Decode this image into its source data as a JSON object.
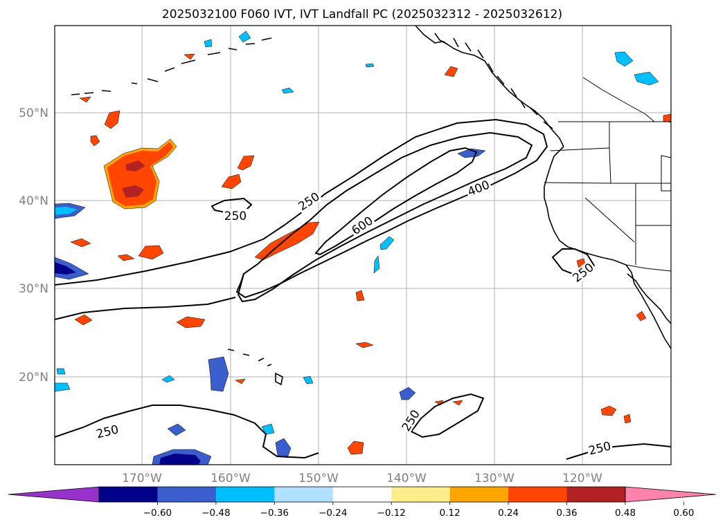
{
  "title": "2025032100 F060 IVT, IVT Landfall PC (2025032312 - 2025032612)",
  "lat_labels": [
    "50°N",
    "40°N",
    "30°N",
    "20°N"
  ],
  "lon_labels": [
    "170°W",
    "160°W",
    "150°W",
    "140°W",
    "130°W",
    "120°W"
  ],
  "contour_labels": [
    "250",
    "250",
    "600",
    "400",
    "250",
    "250",
    "250",
    "250"
  ],
  "colorbar": {
    "colors": [
      "#9932cc",
      "#00008b",
      "#3a5fcd",
      "#00bfff",
      "#b0e2ff",
      "#ffffff",
      "#ffec8b",
      "#ffa500",
      "#ff4500",
      "#b22222",
      "#ff82ab"
    ],
    "tick_labels": [
      "−0.60",
      "−0.48",
      "−0.36",
      "−0.24",
      "−0.12",
      "0.12",
      "0.24",
      "0.36",
      "0.48",
      "0.60"
    ]
  }
}
